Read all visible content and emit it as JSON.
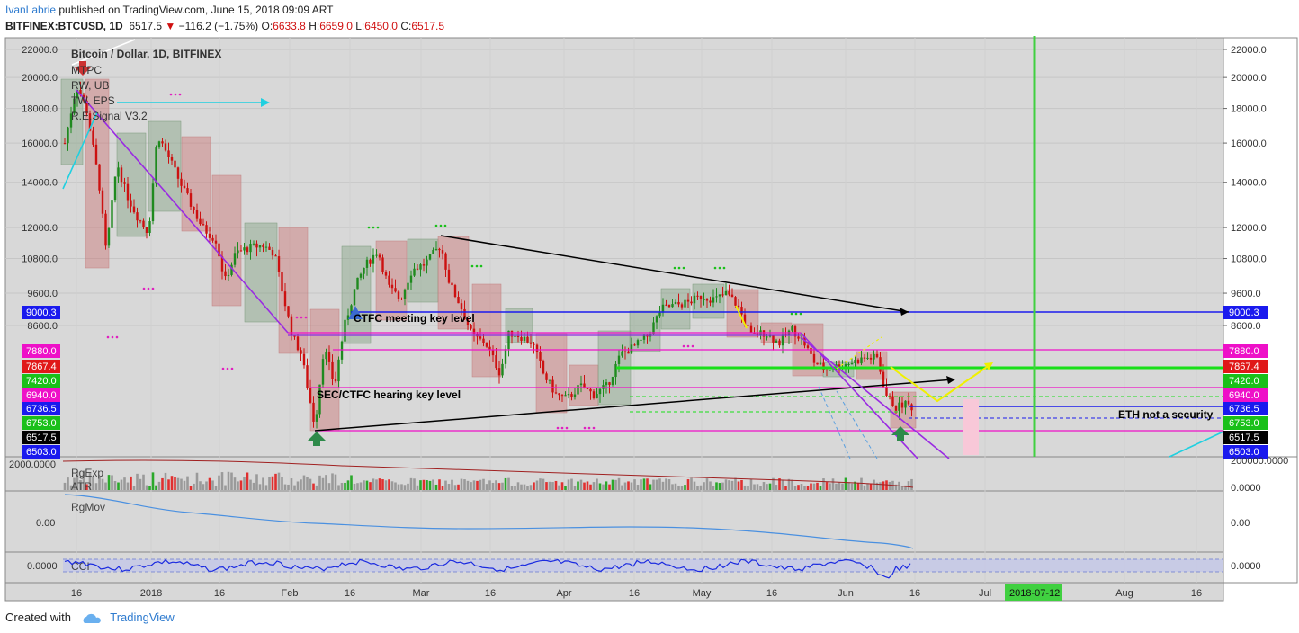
{
  "header": {
    "author": "IvanLabrie",
    "published_text": " published on TradingView.com, June 15, 2018 09:09 ART",
    "symbol": "BITFINEX:BTCUSD, 1D",
    "last": "6517.5",
    "change": "−116.2 (−1.75%)",
    "o_label": "O:",
    "o": "6633.8",
    "h_label": "H:",
    "h": "6659.0",
    "l_label": "L:",
    "l": "6450.0",
    "c_label": "C:",
    "c": "6517.5"
  },
  "legend": {
    "title": "Bitcoin / Dollar, 1D, BITFINEX",
    "indicators": [
      "MTPC",
      "RW, UB",
      "TW, EPS",
      "R.E.Signal V3.2"
    ]
  },
  "annotations": {
    "ctfc": "CTFC meeting key level",
    "sec": "SEC/CTFC hearing key level",
    "eth": "ETH not a security"
  },
  "price_axis": {
    "ticks": [
      "22000.0",
      "20000.0",
      "18000.0",
      "16000.0",
      "14000.0",
      "12000.0",
      "10800.0",
      "9600.0",
      "8600.0"
    ]
  },
  "price_badges": [
    {
      "text": "9000.3",
      "color": "#1a1aee",
      "fg": "#ffffff"
    },
    {
      "text": "7880.0",
      "color": "#ee10c8",
      "fg": "#ffffff"
    },
    {
      "text": "7867.4",
      "color": "#e01818",
      "fg": "#ffffff"
    },
    {
      "text": "7420.0",
      "color": "#19c019",
      "fg": "#ffffff"
    },
    {
      "text": "6940.0",
      "color": "#ee10c8",
      "fg": "#ffffff"
    },
    {
      "text": "6736.5",
      "color": "#1a1aee",
      "fg": "#ffffff"
    },
    {
      "text": "6753.0",
      "color": "#19c019",
      "fg": "#ffffff"
    },
    {
      "text": "6517.5",
      "color": "#000000",
      "fg": "#ffffff"
    },
    {
      "text": "6503.0",
      "color": "#1a1aee",
      "fg": "#ffffff"
    }
  ],
  "panes": {
    "volume": {
      "labels": [
        "RgExp",
        "ATR"
      ],
      "left_tick": "2000.0000",
      "right_ticks": [
        "200000.0000",
        "0.0000"
      ]
    },
    "regmov": {
      "label": "RgMov",
      "left_tick": "0.00",
      "right_tick": "0.00"
    },
    "cci": {
      "label": "CCI",
      "left_tick": "0.0000",
      "right_tick": "0.0000"
    }
  },
  "time_axis": {
    "labels": [
      "16",
      "2018",
      "16",
      "Feb",
      "16",
      "Mar",
      "16",
      "Apr",
      "16",
      "May",
      "16",
      "Jun",
      "16",
      "Jul",
      "Aug",
      "16"
    ],
    "highlight": "2018-07-12"
  },
  "footer": {
    "created_with": "Created with",
    "brand": "TradingView"
  },
  "colors": {
    "bull": "#1f8a1f",
    "bear": "#cc1111",
    "bg": "#d8d8d8",
    "grid": "#c8c8c8"
  },
  "chart_data": {
    "type": "candlestick",
    "title": "Bitcoin / Dollar, 1D, BITFINEX",
    "y_scale": "log",
    "ylim": [
      6300,
      23000
    ],
    "x_range": [
      "2017-12-13",
      "2018-08-20"
    ],
    "key_levels": [
      9000.3,
      7880.0,
      7867.4,
      7420.0,
      6940.0,
      6753.0,
      6736.5,
      6517.5,
      6503.0
    ],
    "approx_swing_points": [
      {
        "date": "2017-12-17",
        "price": 19600
      },
      {
        "date": "2018-01-17",
        "price": 10000
      },
      {
        "date": "2018-02-06",
        "price": 6000
      },
      {
        "date": "2018-03-05",
        "price": 11700
      },
      {
        "date": "2018-04-06",
        "price": 6600
      },
      {
        "date": "2018-05-05",
        "price": 9900
      },
      {
        "date": "2018-06-13",
        "price": 6100
      },
      {
        "date": "2018-06-15",
        "price": 6517.5
      }
    ],
    "last_ohlc": {
      "o": 6633.8,
      "h": 6659.0,
      "l": 6450.0,
      "c": 6517.5
    }
  }
}
